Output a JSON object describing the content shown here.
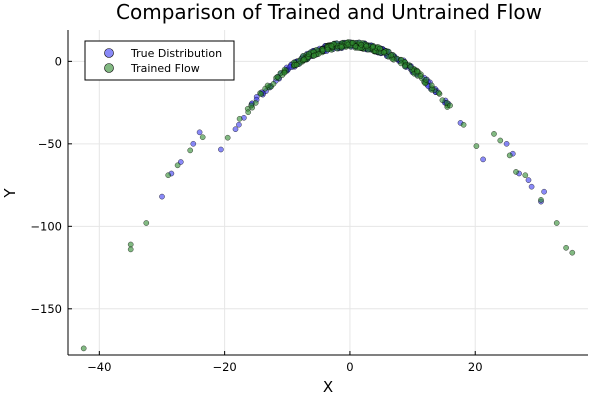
{
  "chart_data": {
    "type": "scatter",
    "title": "Comparison of Trained and Untrained Flow",
    "xlabel": "X",
    "ylabel": "Y",
    "xlim": [
      -45,
      38
    ],
    "ylim": [
      -178,
      19
    ],
    "xticks": [
      -40,
      -20,
      0,
      20
    ],
    "xtick_labels": [
      "−40",
      "−20",
      "0",
      "20"
    ],
    "yticks": [
      0,
      -50,
      -100,
      -150
    ],
    "ytick_labels": [
      "0",
      "−50",
      "−100",
      "−150"
    ],
    "grid": true,
    "legend_position": "top-left",
    "relationship": "y = 10 - 0.15 * x^2 (points scattered tightly around this parabola)",
    "series": [
      {
        "name": "True Distribution",
        "color": "#3a3af2",
        "extreme_points": [
          {
            "x": -28.5,
            "y": -68
          },
          {
            "x": -30,
            "y": -82
          },
          {
            "x": -27,
            "y": -61
          },
          {
            "x": -25,
            "y": -50
          },
          {
            "x": -24,
            "y": -43
          },
          {
            "x": 25,
            "y": -50
          },
          {
            "x": 27,
            "y": -68
          },
          {
            "x": 28.5,
            "y": -72
          },
          {
            "x": 30.5,
            "y": -85
          },
          {
            "x": 31,
            "y": -79
          },
          {
            "x": 26,
            "y": -56
          },
          {
            "x": 29,
            "y": -76
          }
        ],
        "core_x_range": [
          -22,
          22
        ],
        "core_point_count": 230
      },
      {
        "name": "Trained Flow",
        "color": "#2e8b2e",
        "extreme_points": [
          {
            "x": -42.5,
            "y": -174
          },
          {
            "x": -35,
            "y": -111
          },
          {
            "x": -35,
            "y": -114
          },
          {
            "x": -32.5,
            "y": -98
          },
          {
            "x": -29,
            "y": -69
          },
          {
            "x": -27.5,
            "y": -63
          },
          {
            "x": -25.5,
            "y": -54
          },
          {
            "x": -23.5,
            "y": -46
          },
          {
            "x": 23,
            "y": -44
          },
          {
            "x": 24,
            "y": -48
          },
          {
            "x": 25.5,
            "y": -57
          },
          {
            "x": 26.5,
            "y": -67
          },
          {
            "x": 28,
            "y": -69
          },
          {
            "x": 30.5,
            "y": -84
          },
          {
            "x": 33,
            "y": -98
          },
          {
            "x": 34.5,
            "y": -113
          },
          {
            "x": 35.5,
            "y": -116
          }
        ],
        "core_x_range": [
          -22,
          22
        ],
        "core_point_count": 230
      }
    ]
  }
}
